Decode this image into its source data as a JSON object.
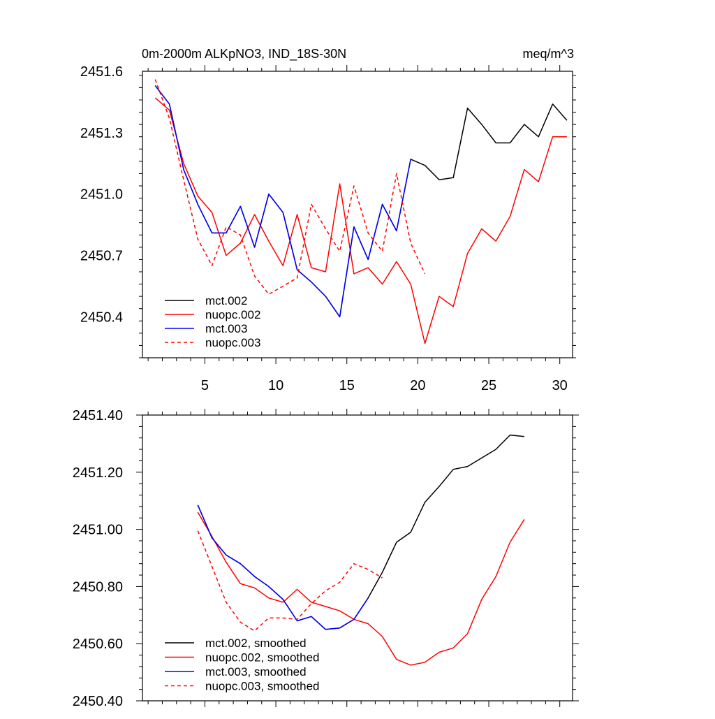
{
  "chart_data": [
    {
      "type": "line",
      "title": "0m-2000m ALKpNO3, IND_18S-30N",
      "units": "meq/m^3",
      "xlabel": "",
      "ylabel": "",
      "xlim": [
        0.6,
        30.9
      ],
      "ylim": [
        2450.2,
        2451.6
      ],
      "xticks": [
        5,
        10,
        15,
        20,
        25,
        30
      ],
      "xtick_labels": [
        "5",
        "10",
        "15",
        "20",
        "25",
        "30"
      ],
      "yticks": [
        2450.4,
        2450.7,
        2451.0,
        2451.3,
        2451.6
      ],
      "ytick_labels": [
        "2450.4",
        "2450.7",
        "2451.0",
        "2451.3",
        "2451.6"
      ],
      "legend_position": "bottom-left",
      "series": [
        {
          "name": "mct.002",
          "color": "#000000",
          "dash": "solid",
          "x": [
            1.5,
            2.5,
            3.5,
            4.5,
            5.5,
            6.5,
            7.5,
            8.5,
            9.5,
            10.5,
            11.5,
            12.5,
            13.5,
            14.5,
            15.5,
            16.5,
            17.5,
            18.5,
            19.5,
            20.5,
            21.5,
            22.5,
            23.5,
            24.5,
            25.5,
            26.5,
            27.5,
            28.5,
            29.5,
            30.5
          ],
          "values": [
            2451.53,
            2451.44,
            2451.12,
            2450.95,
            2450.81,
            2450.81,
            2450.94,
            2450.74,
            2451.0,
            2450.91,
            2450.63,
            2450.57,
            2450.5,
            2450.4,
            2450.84,
            2450.68,
            2450.95,
            2450.82,
            2451.17,
            2451.14,
            2451.07,
            2451.08,
            2451.42,
            2451.34,
            2451.25,
            2451.25,
            2451.34,
            2451.28,
            2451.44,
            2451.36
          ]
        },
        {
          "name": "nuopc.002",
          "color": "#ff0000",
          "dash": "solid",
          "x": [
            1.5,
            2.5,
            3.5,
            4.5,
            5.5,
            6.5,
            7.5,
            8.5,
            9.5,
            10.5,
            11.5,
            12.5,
            13.5,
            14.5,
            15.5,
            16.5,
            17.5,
            18.5,
            19.5,
            20.5,
            21.5,
            22.5,
            23.5,
            24.5,
            25.5,
            26.5,
            27.5,
            28.5,
            29.5,
            30.5
          ],
          "values": [
            2451.47,
            2451.41,
            2451.15,
            2450.99,
            2450.91,
            2450.7,
            2450.76,
            2450.9,
            2450.77,
            2450.65,
            2450.9,
            2450.64,
            2450.62,
            2451.05,
            2450.61,
            2450.64,
            2450.56,
            2450.67,
            2450.56,
            2450.27,
            2450.5,
            2450.45,
            2450.71,
            2450.83,
            2450.77,
            2450.89,
            2451.12,
            2451.06,
            2451.28,
            2451.28
          ]
        },
        {
          "name": "mct.003",
          "color": "#0000ff",
          "dash": "solid",
          "x": [
            1.5,
            2.5,
            3.5,
            4.5,
            5.5,
            6.5,
            7.5,
            8.5,
            9.5,
            10.5,
            11.5,
            12.5,
            13.5,
            14.5,
            15.5,
            16.5,
            17.5,
            18.5,
            19.5
          ],
          "values": [
            2451.53,
            2451.44,
            2451.12,
            2450.95,
            2450.81,
            2450.81,
            2450.94,
            2450.74,
            2451.0,
            2450.91,
            2450.63,
            2450.57,
            2450.5,
            2450.4,
            2450.84,
            2450.68,
            2450.95,
            2450.82,
            2451.17
          ]
        },
        {
          "name": "nuopc.003",
          "color": "#ff0000",
          "dash": "dashed",
          "x": [
            1.5,
            2.5,
            3.5,
            4.5,
            5.5,
            6.5,
            7.5,
            8.5,
            9.5,
            10.5,
            11.5,
            12.5,
            13.5,
            14.5,
            15.5,
            16.5,
            17.5,
            18.5,
            19.5,
            20.5
          ],
          "values": [
            2451.56,
            2451.37,
            2451.07,
            2450.78,
            2450.65,
            2450.84,
            2450.8,
            2450.6,
            2450.51,
            2450.55,
            2450.59,
            2450.95,
            2450.83,
            2450.72,
            2451.04,
            2450.81,
            2450.72,
            2451.1,
            2450.76,
            2450.61
          ]
        }
      ]
    },
    {
      "type": "line",
      "title": "",
      "xlabel": "",
      "ylabel": "",
      "xlim": [
        0.6,
        30.9
      ],
      "ylim": [
        2450.4,
        2451.4
      ],
      "xticks": [
        5,
        10,
        15,
        20,
        25,
        30
      ],
      "xtick_labels": [],
      "yticks": [
        2450.4,
        2450.6,
        2450.8,
        2451.0,
        2451.2,
        2451.4
      ],
      "ytick_labels": [
        "2450.40",
        "2450.60",
        "2450.80",
        "2451.00",
        "2451.20",
        "2451.40"
      ],
      "legend_position": "bottom-left",
      "series": [
        {
          "name": "mct.002, smoothed",
          "color": "#000000",
          "dash": "solid",
          "x": [
            4.5,
            5.5,
            6.5,
            7.5,
            8.5,
            9.5,
            10.5,
            11.5,
            12.5,
            13.5,
            14.5,
            15.5,
            16.5,
            17.5,
            18.5,
            19.5,
            20.5,
            21.5,
            22.5,
            23.5,
            24.5,
            25.5,
            26.5,
            27.5
          ],
          "values": [
            2451.085,
            2450.97,
            2450.91,
            2450.88,
            2450.835,
            2450.8,
            2450.755,
            2450.68,
            2450.695,
            2450.65,
            2450.655,
            2450.685,
            2450.76,
            2450.85,
            2450.955,
            2450.99,
            2451.095,
            2451.15,
            2451.21,
            2451.22,
            2451.25,
            2451.28,
            2451.33,
            2451.325
          ]
        },
        {
          "name": "nuopc.002, smoothed",
          "color": "#ff0000",
          "dash": "solid",
          "x": [
            4.5,
            5.5,
            6.5,
            7.5,
            8.5,
            9.5,
            10.5,
            11.5,
            12.5,
            13.5,
            14.5,
            15.5,
            16.5,
            17.5,
            18.5,
            19.5,
            20.5,
            21.5,
            22.5,
            23.5,
            24.5,
            25.5,
            26.5,
            27.5
          ],
          "values": [
            2451.06,
            2450.975,
            2450.885,
            2450.81,
            2450.795,
            2450.76,
            2450.745,
            2450.79,
            2450.745,
            2450.73,
            2450.715,
            2450.685,
            2450.67,
            2450.625,
            2450.545,
            2450.525,
            2450.535,
            2450.57,
            2450.585,
            2450.635,
            2450.755,
            2450.835,
            2450.955,
            2451.035
          ]
        },
        {
          "name": "mct.003, smoothed",
          "color": "#0000ff",
          "dash": "solid",
          "x": [
            4.5,
            5.5,
            6.5,
            7.5,
            8.5,
            9.5,
            10.5,
            11.5,
            12.5,
            13.5,
            14.5,
            15.5,
            16.5
          ],
          "values": [
            2451.085,
            2450.97,
            2450.91,
            2450.88,
            2450.835,
            2450.8,
            2450.755,
            2450.68,
            2450.695,
            2450.65,
            2450.655,
            2450.685,
            2450.76
          ]
        },
        {
          "name": "nuopc.003, smoothed",
          "color": "#ff0000",
          "dash": "dashed",
          "x": [
            4.5,
            5.5,
            6.5,
            7.5,
            8.5,
            9.5,
            10.5,
            11.5,
            12.5,
            13.5,
            14.5,
            15.5,
            16.5,
            17.5
          ],
          "values": [
            2450.995,
            2450.87,
            2450.745,
            2450.675,
            2450.645,
            2450.69,
            2450.69,
            2450.685,
            2450.74,
            2450.785,
            2450.815,
            2450.88,
            2450.86,
            2450.83
          ]
        }
      ]
    }
  ]
}
